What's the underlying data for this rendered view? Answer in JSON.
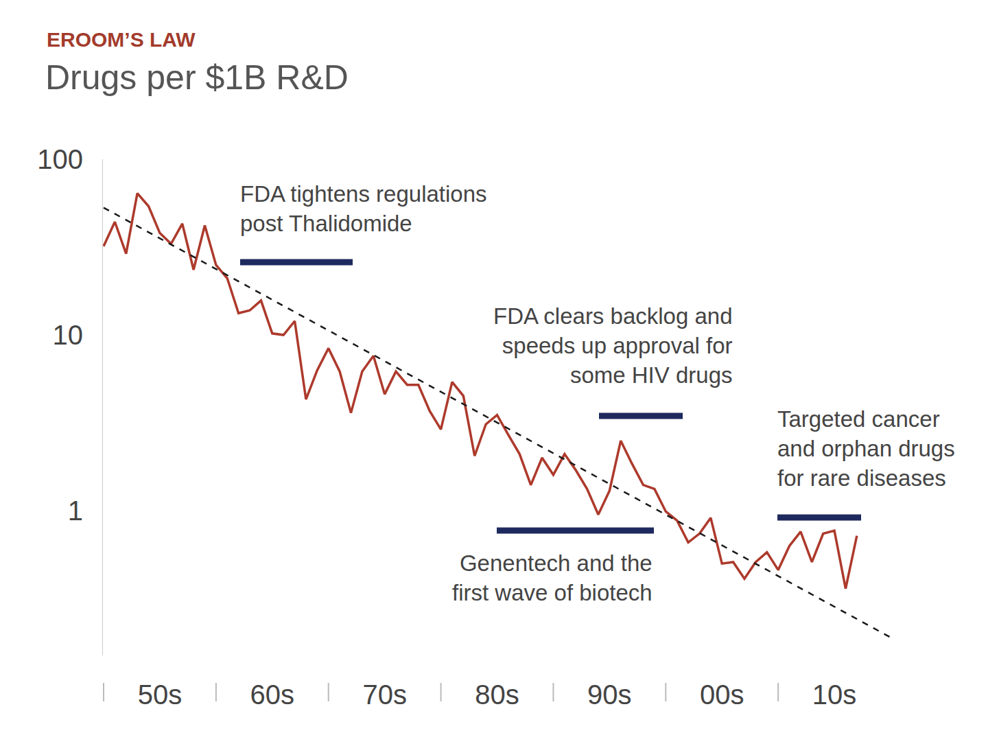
{
  "chart_data": {
    "type": "line",
    "title": "EROOM’S LAW",
    "subtitle": "Drugs per $1B R&D",
    "categories": [
      null,
      null,
      null,
      null,
      null,
      "50s",
      null,
      null,
      null,
      null,
      null,
      null,
      null,
      null,
      null,
      "60s",
      null,
      null,
      null,
      null,
      null,
      null,
      null,
      null,
      null,
      "70s",
      null,
      null,
      null,
      null,
      null,
      null,
      null,
      null,
      null,
      "80s",
      null,
      null,
      null,
      null,
      null,
      null,
      null,
      null,
      null,
      "90s",
      null,
      null,
      null,
      null,
      null,
      null,
      null,
      null,
      null,
      "00s",
      null,
      null,
      null,
      null,
      null,
      null,
      null,
      null,
      null,
      "10s",
      null,
      null,
      null,
      null,
      null
    ],
    "series": [
      {
        "color": "#ad3a2c",
        "line_style": "solid",
        "values": [
          32,
          44,
          29,
          64,
          54,
          38,
          33,
          43,
          23.5,
          42,
          25,
          21,
          13.3,
          13.8,
          15.7,
          10.2,
          10,
          12,
          4.3,
          6.3,
          8.4,
          6.2,
          3.6,
          6.2,
          7.6,
          4.6,
          6.2,
          5.2,
          5.2,
          3.7,
          2.9,
          5.4,
          4.5,
          2.05,
          3.1,
          3.5,
          2.7,
          2.1,
          1.4,
          2.0,
          1.6,
          2.1,
          1.7,
          1.33,
          0.95,
          1.3,
          2.5,
          1.85,
          1.4,
          1.33,
          0.99,
          0.88,
          0.66,
          0.74,
          0.91,
          0.5,
          0.51,
          0.41,
          0.51,
          0.58,
          0.46,
          0.63,
          0.76,
          0.51,
          0.74,
          0.77,
          0.36,
          0.72,
          null,
          null,
          null
        ]
      },
      {
        "color": "#1a1a1a",
        "line_style": "dashed",
        "values": [
          53,
          null,
          null,
          null,
          null,
          null,
          null,
          null,
          null,
          null,
          null,
          null,
          null,
          null,
          null,
          null,
          null,
          null,
          null,
          null,
          null,
          null,
          null,
          null,
          null,
          null,
          null,
          null,
          null,
          null,
          null,
          null,
          null,
          null,
          null,
          null,
          null,
          null,
          null,
          null,
          null,
          null,
          null,
          null,
          null,
          null,
          null,
          null,
          null,
          null,
          null,
          null,
          null,
          null,
          null,
          null,
          null,
          null,
          null,
          null,
          null,
          null,
          null,
          null,
          null,
          null,
          null,
          null,
          null,
          null,
          0.19
        ]
      }
    ],
    "ylim": [
      0.15,
      100
    ],
    "yticks": [
      1,
      10,
      100
    ],
    "log": "y",
    "grid": false,
    "annotations": [
      {
        "text": [
          "FDA tightens regulations",
          "post Thalidomide"
        ],
        "color": "#1e2a5e"
      },
      {
        "text": [
          "FDA clears backlog and",
          "speeds up approval for",
          "some HIV drugs"
        ],
        "color": "#1e2a5e"
      },
      {
        "text": [
          "Genentech and the",
          "first wave of biotech"
        ],
        "color": "#1e2a5e"
      },
      {
        "text": [
          "Targeted cancer",
          "and orphan drugs",
          "for rare diseases"
        ],
        "color": "#1e2a5e"
      }
    ]
  }
}
